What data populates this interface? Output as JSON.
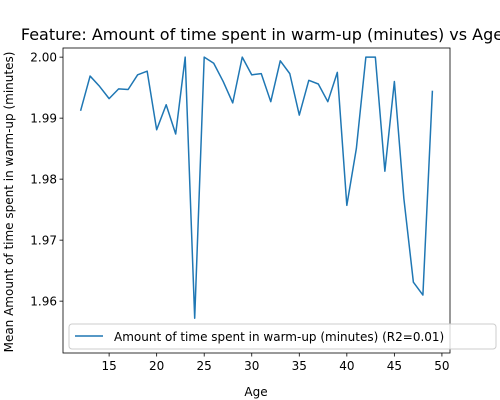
{
  "chart_data": {
    "type": "line",
    "title": "Feature: Amount of time spent in warm-up (minutes) vs Age",
    "xlabel": "Age",
    "ylabel": "Mean Amount of time spent in warm-up (minutes)",
    "xlim": [
      10.15,
      50.85
    ],
    "ylim": [
      1.9515,
      2.0015
    ],
    "xticks": [
      15,
      20,
      25,
      30,
      35,
      40,
      45,
      50
    ],
    "yticks": [
      1.96,
      1.97,
      1.98,
      1.99,
      2.0
    ],
    "ytick_labels": [
      "1.96",
      "1.97",
      "1.98",
      "1.99",
      "2.00"
    ],
    "grid": false,
    "legend_position": "lower-right",
    "color": "#1f77b4",
    "series": [
      {
        "name": "Amount of time spent in warm-up (minutes) (R2=0.01)",
        "x": [
          12,
          13,
          14,
          15,
          16,
          17,
          18,
          19,
          20,
          21,
          22,
          23,
          24,
          25,
          26,
          27,
          28,
          29,
          30,
          31,
          32,
          33,
          34,
          35,
          36,
          37,
          38,
          39,
          40,
          41,
          42,
          43,
          44,
          45,
          46,
          47,
          48,
          49
        ],
        "y": [
          1.9912,
          1.9969,
          1.9952,
          1.9932,
          1.9948,
          1.9947,
          1.9971,
          1.9977,
          1.9881,
          1.9922,
          1.9874,
          2.0,
          1.9572,
          2.0,
          1.999,
          1.996,
          1.9925,
          2.0,
          1.9971,
          1.9973,
          1.9927,
          1.9994,
          1.9973,
          1.9905,
          1.9962,
          1.9956,
          1.9927,
          1.9975,
          1.9757,
          1.985,
          2.0,
          2.0,
          1.9813,
          1.996,
          1.9768,
          1.9631,
          1.961,
          1.9945
        ]
      }
    ]
  }
}
